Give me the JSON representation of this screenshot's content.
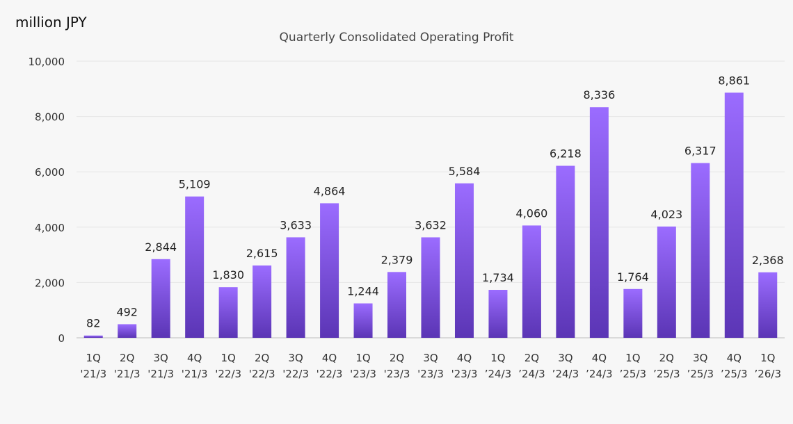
{
  "chart_data": {
    "type": "bar",
    "title": "Quarterly Consolidated Operating Profit",
    "unit_label": "million JPY",
    "xlabel": "",
    "ylabel": "",
    "ylim": [
      0,
      10000
    ],
    "yticks": [
      0,
      2000,
      4000,
      6000,
      8000,
      10000
    ],
    "ytick_labels": [
      "0",
      "2,000",
      "4,000",
      "6,000",
      "8,000",
      "10,000"
    ],
    "grid": true,
    "bar_color_top": "#9b6cff",
    "bar_color_bottom": "#5b35b5",
    "categories": [
      [
        "1Q",
        "'21/3"
      ],
      [
        "2Q",
        "'21/3"
      ],
      [
        "3Q",
        "'21/3"
      ],
      [
        "4Q",
        "'21/3"
      ],
      [
        "1Q",
        "'22/3"
      ],
      [
        "2Q",
        "'22/3"
      ],
      [
        "3Q",
        "'22/3"
      ],
      [
        "4Q",
        "'22/3"
      ],
      [
        "1Q",
        "'23/3"
      ],
      [
        "2Q",
        "'23/3"
      ],
      [
        "3Q",
        "'23/3"
      ],
      [
        "4Q",
        "'23/3"
      ],
      [
        "1Q",
        "’24/3"
      ],
      [
        "2Q",
        "’24/3"
      ],
      [
        "3Q",
        "’24/3"
      ],
      [
        "4Q",
        "’24/3"
      ],
      [
        "1Q",
        "’25/3"
      ],
      [
        "2Q",
        "’25/3"
      ],
      [
        "3Q",
        "’25/3"
      ],
      [
        "4Q",
        "’25/3"
      ],
      [
        "1Q",
        "’26/3"
      ]
    ],
    "values": [
      82,
      492,
      2844,
      5109,
      1830,
      2615,
      3633,
      4864,
      1244,
      2379,
      3632,
      5584,
      1734,
      4060,
      6218,
      8336,
      1764,
      4023,
      6317,
      8861,
      2368
    ],
    "value_labels": [
      "82",
      "492",
      "2,844",
      "5,109",
      "1,830",
      "2,615",
      "3,633",
      "4,864",
      "1,244",
      "2,379",
      "3,632",
      "5,584",
      "1,734",
      "4,060",
      "6,218",
      "8,336",
      "1,764",
      "4,023",
      "6,317",
      "8,861",
      "2,368"
    ]
  }
}
